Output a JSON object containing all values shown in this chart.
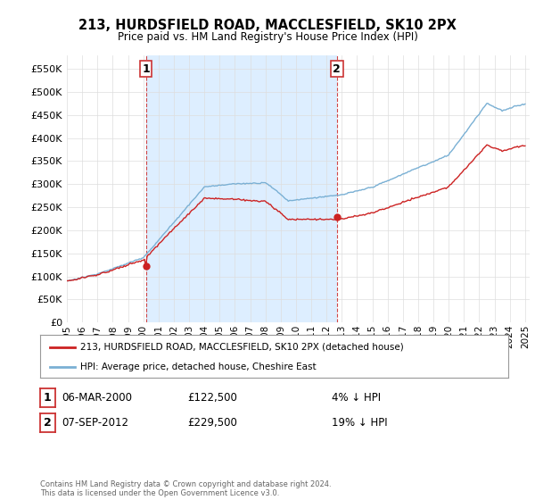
{
  "title": "213, HURDSFIELD ROAD, MACCLESFIELD, SK10 2PX",
  "subtitle": "Price paid vs. HM Land Registry's House Price Index (HPI)",
  "background_color": "#ffffff",
  "plot_background": "#ffffff",
  "grid_color": "#dddddd",
  "highlight_band_color": "#ddeeff",
  "hpi_color": "#7ab0d4",
  "price_color": "#cc2222",
  "marker_color": "#cc2222",
  "vline_color": "#cc3333",
  "ylim": [
    0,
    580000
  ],
  "yticks": [
    0,
    50000,
    100000,
    150000,
    200000,
    250000,
    300000,
    350000,
    400000,
    450000,
    500000,
    550000
  ],
  "sale1": {
    "date_num": 2000.17,
    "price": 122500,
    "label": "1"
  },
  "sale2": {
    "date_num": 2012.67,
    "price": 229500,
    "label": "2"
  },
  "legend_label_price": "213, HURDSFIELD ROAD, MACCLESFIELD, SK10 2PX (detached house)",
  "legend_label_hpi": "HPI: Average price, detached house, Cheshire East",
  "table_rows": [
    {
      "num": "1",
      "date": "06-MAR-2000",
      "price": "£122,500",
      "pct": "4% ↓ HPI"
    },
    {
      "num": "2",
      "date": "07-SEP-2012",
      "price": "£229,500",
      "pct": "19% ↓ HPI"
    }
  ],
  "footer": "Contains HM Land Registry data © Crown copyright and database right 2024.\nThis data is licensed under the Open Government Licence v3.0.",
  "xtick_years": [
    1995,
    1996,
    1997,
    1998,
    1999,
    2000,
    2001,
    2002,
    2003,
    2004,
    2005,
    2006,
    2007,
    2008,
    2009,
    2010,
    2011,
    2012,
    2013,
    2014,
    2015,
    2016,
    2017,
    2018,
    2019,
    2020,
    2021,
    2022,
    2023,
    2024,
    2025
  ]
}
